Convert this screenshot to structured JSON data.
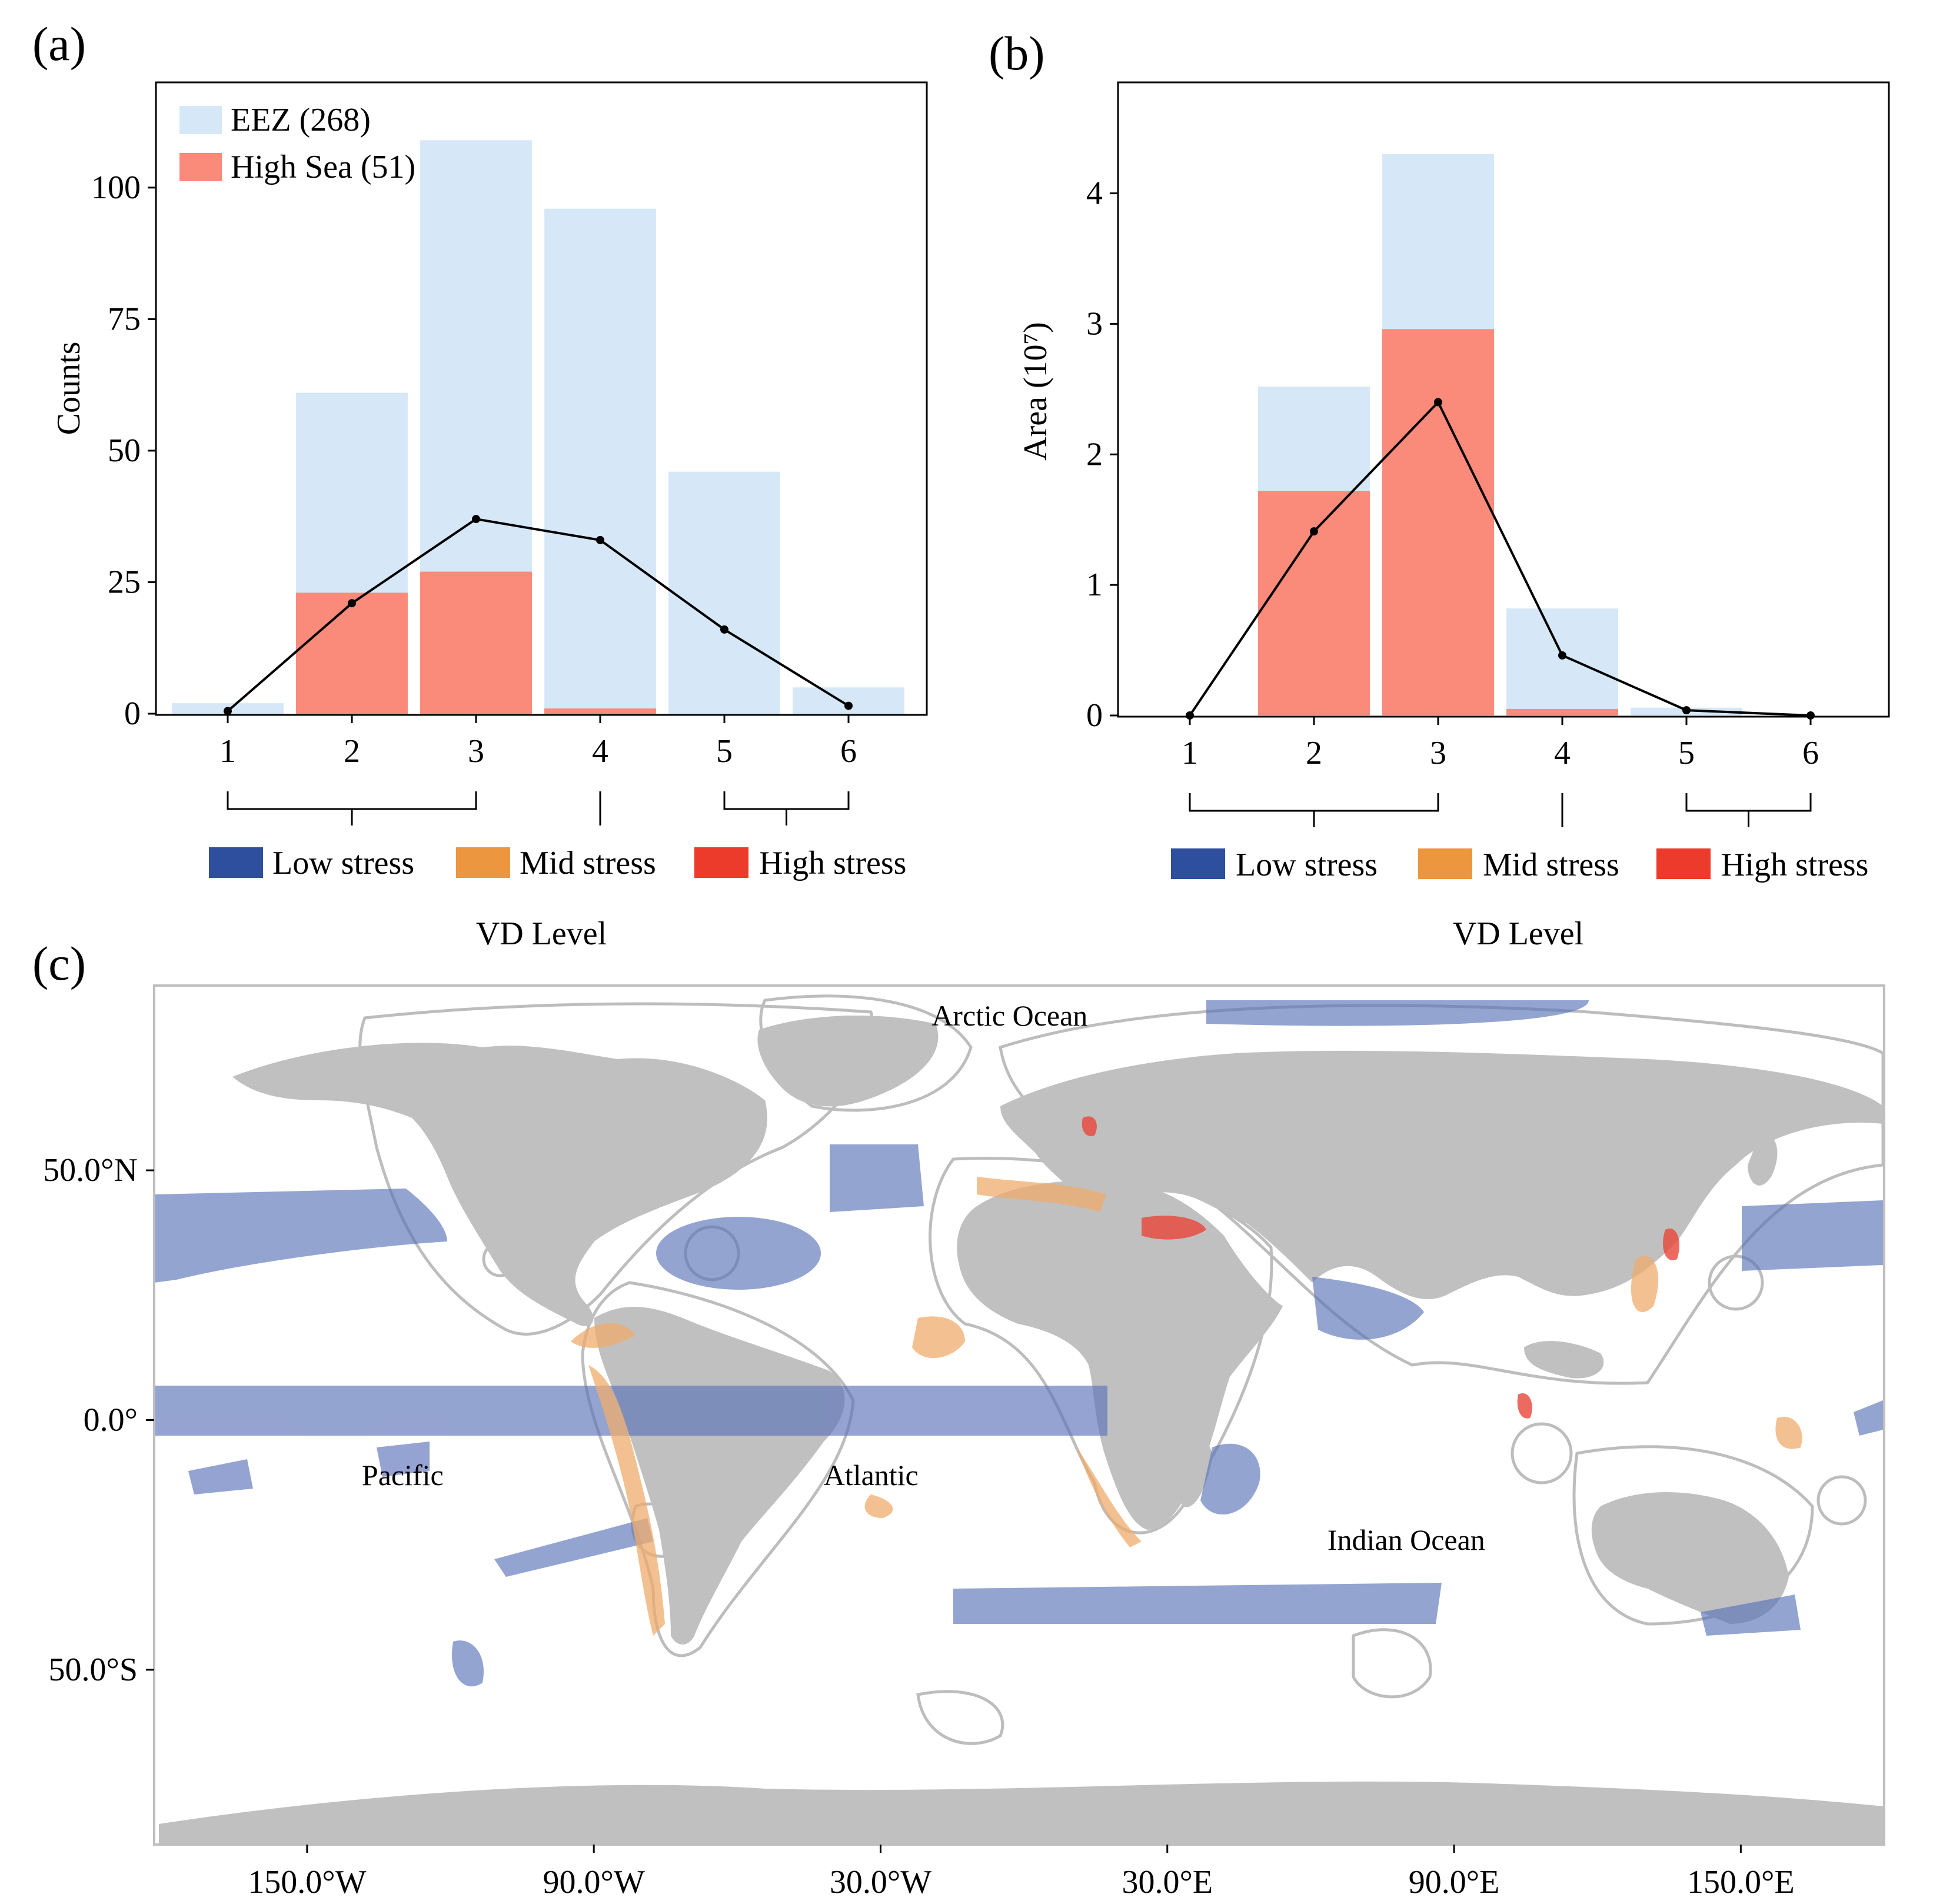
{
  "panels": {
    "a": "(a)",
    "b": "(b)",
    "c": "(c)"
  },
  "chart_data": [
    {
      "panel": "a",
      "type": "bar",
      "categories": [
        "1",
        "2",
        "3",
        "4",
        "5",
        "6"
      ],
      "ylabel": "Counts",
      "xlabel": "VD Level",
      "ylim": [
        0,
        120
      ],
      "yticks": [
        "0",
        "25",
        "50",
        "75",
        "100"
      ],
      "yticks_values": [
        0,
        25,
        50,
        75,
        100
      ],
      "legend_position": "top-left",
      "series": [
        {
          "name": "EEZ (268)",
          "color": "#d6e8f7",
          "values": [
            2,
            61,
            109,
            96,
            46,
            5
          ]
        },
        {
          "name": "High Sea (51)",
          "color": "#fa8a7a",
          "values": [
            0,
            23,
            27,
            1,
            0,
            0
          ]
        }
      ],
      "line": {
        "color": "#000000",
        "values": [
          0.5,
          21,
          37,
          33,
          16,
          1.5
        ]
      },
      "stress_groups": [
        {
          "label": "Low stress",
          "color": "#2e4f9e",
          "levels": [
            "1",
            "2",
            "3"
          ]
        },
        {
          "label": "Mid stress",
          "color": "#ec963f",
          "levels": [
            "4"
          ]
        },
        {
          "label": "High stress",
          "color": "#ec3a2b",
          "levels": [
            "5",
            "6"
          ]
        }
      ]
    },
    {
      "panel": "b",
      "type": "bar",
      "categories": [
        "1",
        "2",
        "3",
        "4",
        "5",
        "6"
      ],
      "ylabel": "Area (10⁷)",
      "xlabel": "VD Level",
      "ylim": [
        0,
        4.85
      ],
      "yticks": [
        "0",
        "1",
        "2",
        "3",
        "4"
      ],
      "yticks_values": [
        0,
        1,
        2,
        3,
        4
      ],
      "series": [
        {
          "name": "EEZ",
          "color": "#d6e8f7",
          "values": [
            0,
            2.52,
            4.3,
            0.82,
            0.06,
            0
          ]
        },
        {
          "name": "High Sea",
          "color": "#fa8a7a",
          "values": [
            0,
            1.72,
            2.96,
            0.05,
            0,
            0
          ]
        }
      ],
      "line": {
        "color": "#000000",
        "values": [
          0,
          1.41,
          2.4,
          0.46,
          0.04,
          0
        ]
      },
      "stress_groups": [
        {
          "label": "Low stress",
          "color": "#2e4f9e",
          "levels": [
            "1",
            "2",
            "3"
          ]
        },
        {
          "label": "Mid stress",
          "color": "#ec963f",
          "levels": [
            "4"
          ]
        },
        {
          "label": "High stress",
          "color": "#ec3a2b",
          "levels": [
            "5",
            "6"
          ]
        }
      ]
    },
    {
      "panel": "c",
      "type": "map",
      "xticks": [
        "150.0°W",
        "90.0°W",
        "30.0°W",
        "30.0°E",
        "90.0°E",
        "150.0°E"
      ],
      "xticks_values": [
        -150,
        -90,
        -30,
        30,
        90,
        150
      ],
      "yticks": [
        "50.0°N",
        "0.0°",
        "50.0°S"
      ],
      "yticks_values": [
        50,
        0,
        -50
      ],
      "xlim": [
        -182,
        180
      ],
      "ylim": [
        -85,
        87
      ],
      "labels": [
        {
          "text": "Arctic Ocean",
          "lon": -3,
          "lat": 79
        },
        {
          "text": "Pacific",
          "lon": -130,
          "lat": -13
        },
        {
          "text": "Atlantic",
          "lon": -32,
          "lat": -13
        },
        {
          "text": "Indian Ocean",
          "lon": 80,
          "lat": -26
        }
      ],
      "colors": {
        "land": "#c0c0c0",
        "eez_outline": "#bdbdbd",
        "low": "#5b73b9",
        "mid": "#efac6c",
        "high": "#e8453a"
      }
    }
  ]
}
